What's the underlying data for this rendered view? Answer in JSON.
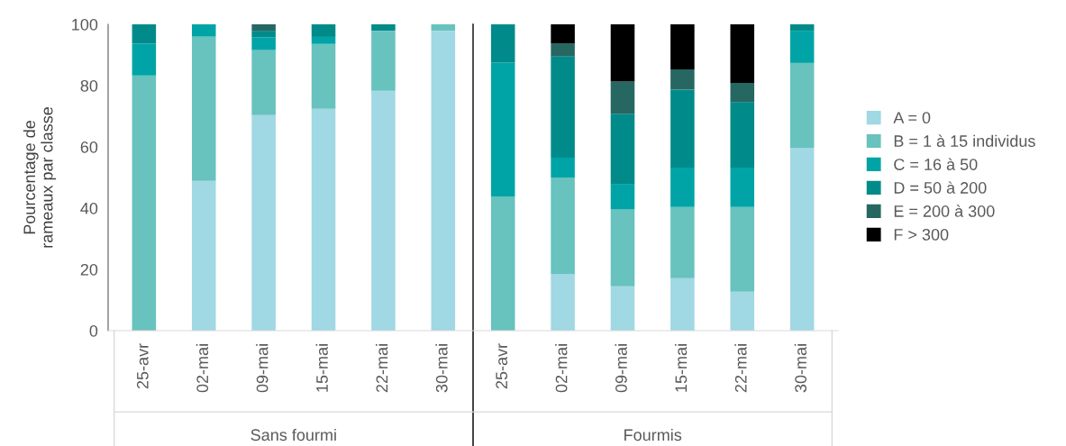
{
  "chart_data": {
    "type": "bar",
    "stacked": true,
    "ylabel": "Pourcentage de\nrameaux par classe",
    "categories": [
      "25-avr",
      "02-mai",
      "09-mai",
      "15-mai",
      "22-mai",
      "30-mai",
      "25-avr",
      "02-mai",
      "09-mai",
      "15-mai",
      "22-mai",
      "30-mai"
    ],
    "series": [
      {
        "name": "A = 0",
        "color": "#a0d8e3",
        "values": [
          0,
          48.9,
          70.4,
          72.4,
          78.3,
          97.9,
          0,
          18.5,
          14.5,
          17.1,
          12.7,
          59.7
        ]
      },
      {
        "name": "B = 1 à 15 individus",
        "color": "#68c2be",
        "values": [
          83.3,
          47.1,
          21.2,
          21.2,
          19.6,
          2.1,
          43.8,
          31.5,
          25.1,
          23.3,
          27.7,
          27.7
        ]
      },
      {
        "name": "C = 16 à 50",
        "color": "#00a4a6",
        "values": [
          10.4,
          4.0,
          4.2,
          2.3,
          0,
          0,
          43.8,
          6.5,
          8.3,
          12.8,
          12.8,
          10.5
        ]
      },
      {
        "name": "D = 50 à 200",
        "color": "#008b8a",
        "values": [
          6.3,
          0,
          2.1,
          4.1,
          2.1,
          0,
          12.4,
          33.1,
          22.9,
          25.5,
          21.4,
          2.1
        ]
      },
      {
        "name": "E = 200 à 300",
        "color": "#276762",
        "values": [
          0,
          0,
          2.1,
          0,
          0,
          0,
          0,
          4.2,
          10.5,
          6.6,
          6.3,
          0
        ]
      },
      {
        "name": "F > 300",
        "color": "#000000",
        "values": [
          0,
          0,
          0,
          0,
          0,
          0,
          0,
          6.2,
          18.7,
          14.7,
          19.1,
          0
        ]
      }
    ],
    "ylim": [
      0,
      100
    ],
    "yticks": [
      0,
      20,
      40,
      60,
      80,
      100
    ],
    "grid": false,
    "legend": "right",
    "annotations": [
      "Sans fourmi",
      "Fourmis"
    ]
  }
}
